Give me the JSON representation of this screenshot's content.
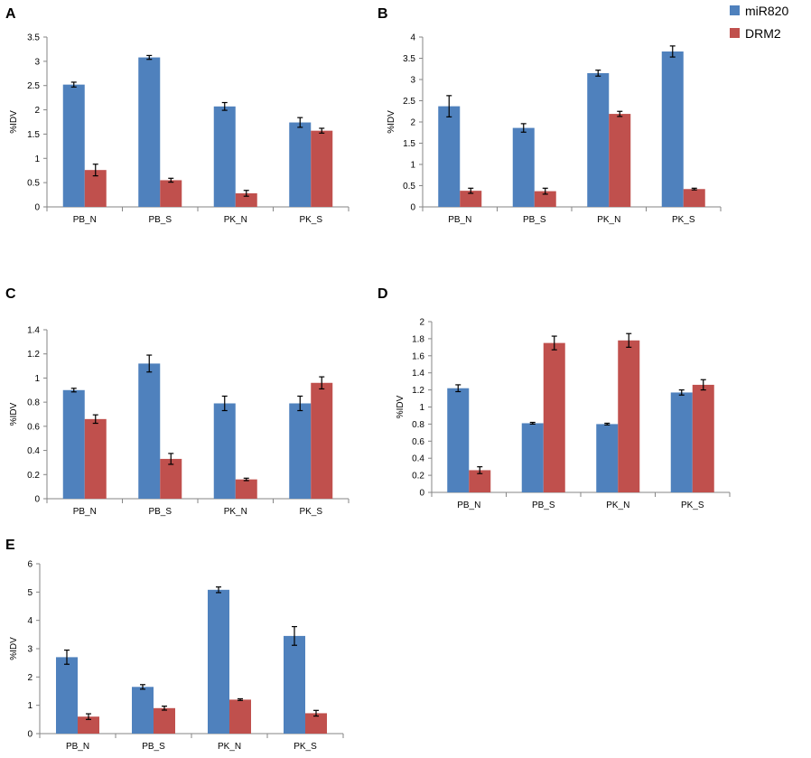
{
  "colors": {
    "miR820": "#4f81bd",
    "DRM2": "#c0504d",
    "axis": "#868686",
    "errorbar": "#000000"
  },
  "legend": {
    "items": [
      {
        "label": "miR820",
        "color": "#4f81bd"
      },
      {
        "label": "DRM2",
        "color": "#c0504d"
      }
    ],
    "placement": "top-right"
  },
  "chart_data": [
    {
      "panel": "A",
      "type": "bar",
      "ylabel": "%IDV",
      "categories": [
        "PB_N",
        "PB_S",
        "PK_N",
        "PK_S"
      ],
      "ylim": [
        0,
        3.5
      ],
      "yticks": [
        "0",
        "0.5",
        "1",
        "1.5",
        "2",
        "2.5",
        "3",
        "3.5"
      ],
      "series": [
        {
          "name": "miR820",
          "values": [
            2.52,
            3.08,
            2.07,
            1.74
          ],
          "errors": [
            0.05,
            0.04,
            0.08,
            0.1
          ]
        },
        {
          "name": "DRM2",
          "values": [
            0.76,
            0.55,
            0.28,
            1.57
          ],
          "errors": [
            0.12,
            0.04,
            0.06,
            0.05
          ]
        }
      ]
    },
    {
      "panel": "B",
      "type": "bar",
      "ylabel": "%IDV",
      "categories": [
        "PB_N",
        "PB_S",
        "PK_N",
        "PK_S"
      ],
      "ylim": [
        0,
        4
      ],
      "yticks": [
        "0",
        "0.5",
        "1",
        "1.5",
        "2",
        "2.5",
        "3",
        "3.5",
        "4"
      ],
      "series": [
        {
          "name": "miR820",
          "values": [
            2.37,
            1.86,
            3.15,
            3.66
          ],
          "errors": [
            0.25,
            0.1,
            0.07,
            0.13
          ]
        },
        {
          "name": "DRM2",
          "values": [
            0.38,
            0.37,
            2.19,
            0.42
          ],
          "errors": [
            0.06,
            0.07,
            0.06,
            0.02
          ]
        }
      ]
    },
    {
      "panel": "C",
      "type": "bar",
      "ylabel": "%IDV",
      "categories": [
        "PB_N",
        "PB_S",
        "PK_N",
        "PK_S"
      ],
      "ylim": [
        0,
        1.4
      ],
      "yticks": [
        "0",
        "0.2",
        "0.4",
        "0.6",
        "0.8",
        "1",
        "1.2",
        "1.4"
      ],
      "series": [
        {
          "name": "miR820",
          "values": [
            0.9,
            1.12,
            0.79,
            0.79
          ],
          "errors": [
            0.015,
            0.07,
            0.06,
            0.06
          ]
        },
        {
          "name": "DRM2",
          "values": [
            0.66,
            0.33,
            0.16,
            0.96
          ],
          "errors": [
            0.035,
            0.045,
            0.01,
            0.05
          ]
        }
      ]
    },
    {
      "panel": "D",
      "type": "bar",
      "ylabel": "%IDV",
      "categories": [
        "PB_N",
        "PB_S",
        "PK_N",
        "PK_S"
      ],
      "ylim": [
        0,
        2
      ],
      "yticks": [
        "0",
        "0.2",
        "0.4",
        "0.6",
        "0.8",
        "1",
        "1.2",
        "1.4",
        "1.6",
        "1.8",
        "2"
      ],
      "series": [
        {
          "name": "miR820",
          "values": [
            1.22,
            0.81,
            0.8,
            1.17
          ],
          "errors": [
            0.04,
            0.01,
            0.01,
            0.03
          ]
        },
        {
          "name": "DRM2",
          "values": [
            0.26,
            1.75,
            1.78,
            1.26
          ],
          "errors": [
            0.04,
            0.08,
            0.08,
            0.06
          ]
        }
      ]
    },
    {
      "panel": "E",
      "type": "bar",
      "ylabel": "%IDV",
      "categories": [
        "PB_N",
        "PB_S",
        "PK_N",
        "PK_S"
      ],
      "ylim": [
        0,
        6
      ],
      "yticks": [
        "0",
        "1",
        "2",
        "3",
        "4",
        "5",
        "6"
      ],
      "series": [
        {
          "name": "miR820",
          "values": [
            2.7,
            1.65,
            5.08,
            3.45
          ],
          "errors": [
            0.25,
            0.08,
            0.1,
            0.33
          ]
        },
        {
          "name": "DRM2",
          "values": [
            0.6,
            0.9,
            1.2,
            0.72
          ],
          "errors": [
            0.1,
            0.07,
            0.03,
            0.1
          ]
        }
      ]
    }
  ]
}
